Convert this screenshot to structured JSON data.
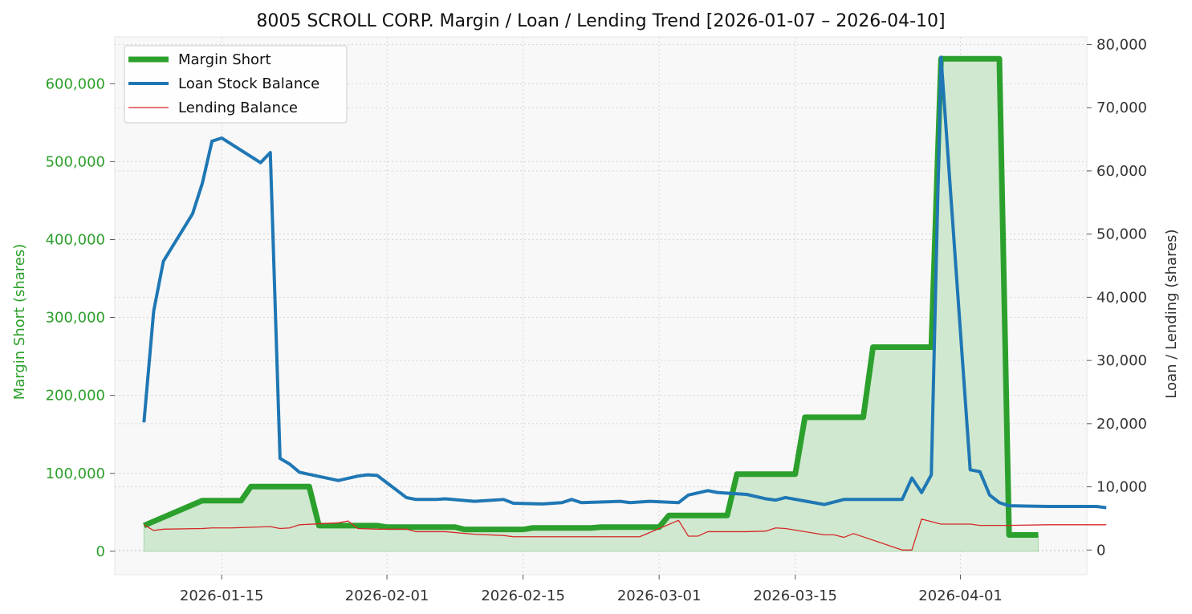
{
  "chart_data": {
    "type": "line",
    "title": "8005 SCROLL CORP. Margin / Loan / Lending Trend [2026-01-07 – 2026-04-10]",
    "ylabel_left": "Margin Short (shares)",
    "ylabel_right": "Loan / Lending (shares)",
    "x_tick_labels": [
      "2026-01-15",
      "2026-02-01",
      "2026-02-15",
      "2026-03-01",
      "2026-03-15",
      "2026-04-01"
    ],
    "x_range": [
      "2026-01-04",
      "2026-04-14"
    ],
    "ylim_left": [
      -30000,
      660000
    ],
    "ylim_right": [
      -3900,
      81200
    ],
    "left_ticks": [
      0,
      100000,
      200000,
      300000,
      400000,
      500000,
      600000
    ],
    "right_ticks": [
      0,
      10000,
      20000,
      30000,
      40000,
      50000,
      60000,
      70000,
      80000
    ],
    "grid": true,
    "legend_position": "top-left",
    "colors": {
      "margin": "#2ca02c",
      "margin_fill": "#cfe8cf",
      "loan": "#1f77b4",
      "lending": "#d62728",
      "plot_bg": "#f8f8f8",
      "left_axis_text": "#2ca02c"
    },
    "series": [
      {
        "name": "Margin Short",
        "axis": "left",
        "step": true,
        "points": [
          [
            "2026-01-07",
            33000
          ],
          [
            "2026-01-13",
            65000
          ],
          [
            "2026-01-17",
            65000
          ],
          [
            "2026-01-18",
            83000
          ],
          [
            "2026-01-24",
            83000
          ],
          [
            "2026-01-25",
            33000
          ],
          [
            "2026-01-31",
            33000
          ],
          [
            "2026-02-01",
            31000
          ],
          [
            "2026-02-08",
            31000
          ],
          [
            "2026-02-09",
            28000
          ],
          [
            "2026-02-15",
            28000
          ],
          [
            "2026-02-16",
            30000
          ],
          [
            "2026-02-22",
            30000
          ],
          [
            "2026-02-23",
            31000
          ],
          [
            "2026-03-01",
            31000
          ],
          [
            "2026-03-02",
            46000
          ],
          [
            "2026-03-08",
            46000
          ],
          [
            "2026-03-09",
            99000
          ],
          [
            "2026-03-15",
            99000
          ],
          [
            "2026-03-16",
            172000
          ],
          [
            "2026-03-22",
            172000
          ],
          [
            "2026-03-23",
            262000
          ],
          [
            "2026-03-29",
            262000
          ],
          [
            "2026-03-30",
            632000
          ],
          [
            "2026-04-05",
            632000
          ],
          [
            "2026-04-06",
            21000
          ],
          [
            "2026-04-09",
            21000
          ]
        ]
      },
      {
        "name": "Loan Stock Balance",
        "axis": "right",
        "points": [
          [
            "2026-01-07",
            20200
          ],
          [
            "2026-01-08",
            37800
          ],
          [
            "2026-01-09",
            45700
          ],
          [
            "2026-01-12",
            53200
          ],
          [
            "2026-01-13",
            58000
          ],
          [
            "2026-01-14",
            64700
          ],
          [
            "2026-01-15",
            65200
          ],
          [
            "2026-01-19",
            61300
          ],
          [
            "2026-01-20",
            62900
          ],
          [
            "2026-01-21",
            14500
          ],
          [
            "2026-01-22",
            13600
          ],
          [
            "2026-01-23",
            12300
          ],
          [
            "2026-01-27",
            11000
          ],
          [
            "2026-01-29",
            11700
          ],
          [
            "2026-01-30",
            11900
          ],
          [
            "2026-01-31",
            11800
          ],
          [
            "2026-02-03",
            8300
          ],
          [
            "2026-02-04",
            8000
          ],
          [
            "2026-02-06",
            8000
          ],
          [
            "2026-02-07",
            8100
          ],
          [
            "2026-02-10",
            7700
          ],
          [
            "2026-02-13",
            8000
          ],
          [
            "2026-02-14",
            7400
          ],
          [
            "2026-02-17",
            7300
          ],
          [
            "2026-02-19",
            7500
          ],
          [
            "2026-02-20",
            8000
          ],
          [
            "2026-02-21",
            7500
          ],
          [
            "2026-02-25",
            7700
          ],
          [
            "2026-02-26",
            7500
          ],
          [
            "2026-02-28",
            7700
          ],
          [
            "2026-03-03",
            7500
          ],
          [
            "2026-03-04",
            8700
          ],
          [
            "2026-03-06",
            9400
          ],
          [
            "2026-03-07",
            9100
          ],
          [
            "2026-03-10",
            8800
          ],
          [
            "2026-03-12",
            8100
          ],
          [
            "2026-03-13",
            7900
          ],
          [
            "2026-03-14",
            8300
          ],
          [
            "2026-03-18",
            7200
          ],
          [
            "2026-03-19",
            7600
          ],
          [
            "2026-03-20",
            8000
          ],
          [
            "2026-03-23",
            8000
          ],
          [
            "2026-03-26",
            8000
          ],
          [
            "2026-03-27",
            11400
          ],
          [
            "2026-03-28",
            9100
          ],
          [
            "2026-03-29",
            11900
          ],
          [
            "2026-03-30",
            78000
          ],
          [
            "2026-04-02",
            12700
          ],
          [
            "2026-04-03",
            12400
          ],
          [
            "2026-04-04",
            8700
          ],
          [
            "2026-04-05",
            7500
          ],
          [
            "2026-04-06",
            7000
          ],
          [
            "2026-04-10",
            6900
          ],
          [
            "2026-04-15",
            6900
          ],
          [
            "2026-04-16",
            6700
          ]
        ]
      },
      {
        "name": "Lending Balance",
        "axis": "right",
        "points": [
          [
            "2026-01-07",
            4000
          ],
          [
            "2026-01-08",
            3100
          ],
          [
            "2026-01-09",
            3300
          ],
          [
            "2026-01-13",
            3400
          ],
          [
            "2026-01-14",
            3500
          ],
          [
            "2026-01-16",
            3500
          ],
          [
            "2026-01-20",
            3700
          ],
          [
            "2026-01-21",
            3400
          ],
          [
            "2026-01-22",
            3500
          ],
          [
            "2026-01-23",
            4000
          ],
          [
            "2026-01-27",
            4300
          ],
          [
            "2026-01-28",
            4600
          ],
          [
            "2026-01-29",
            3400
          ],
          [
            "2026-01-31",
            3300
          ],
          [
            "2026-02-03",
            3300
          ],
          [
            "2026-02-04",
            2900
          ],
          [
            "2026-02-07",
            2900
          ],
          [
            "2026-02-10",
            2500
          ],
          [
            "2026-02-13",
            2300
          ],
          [
            "2026-02-14",
            2100
          ],
          [
            "2026-02-20",
            2100
          ],
          [
            "2026-02-27",
            2100
          ],
          [
            "2026-03-03",
            4700
          ],
          [
            "2026-03-04",
            2200
          ],
          [
            "2026-03-05",
            2200
          ],
          [
            "2026-03-06",
            2900
          ],
          [
            "2026-03-10",
            2900
          ],
          [
            "2026-03-12",
            3000
          ],
          [
            "2026-03-13",
            3500
          ],
          [
            "2026-03-14",
            3400
          ],
          [
            "2026-03-18",
            2400
          ],
          [
            "2026-03-19",
            2400
          ],
          [
            "2026-03-20",
            2000
          ],
          [
            "2026-03-21",
            2600
          ],
          [
            "2026-03-26",
            0
          ],
          [
            "2026-03-27",
            0
          ],
          [
            "2026-03-28",
            4900
          ],
          [
            "2026-03-29",
            4500
          ],
          [
            "2026-03-30",
            4100
          ],
          [
            "2026-04-02",
            4100
          ],
          [
            "2026-04-03",
            3900
          ],
          [
            "2026-04-06",
            3900
          ],
          [
            "2026-04-10",
            4000
          ],
          [
            "2026-04-16",
            4000
          ]
        ]
      }
    ]
  }
}
